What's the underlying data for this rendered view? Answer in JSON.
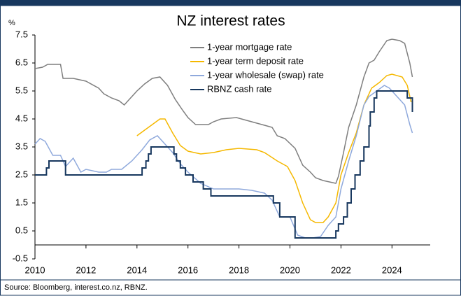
{
  "chart_data": {
    "type": "line",
    "title": "NZ interest rates",
    "y_label": "%",
    "source": "Source: Bloomberg, interest.co.nz, RBNZ.",
    "xlim": [
      2010,
      2025.5
    ],
    "xticks": [
      2010,
      2012,
      2014,
      2016,
      2018,
      2020,
      2022,
      2024
    ],
    "ylim": [
      -0.5,
      7.5
    ],
    "yticks": [
      -0.5,
      0.5,
      1.5,
      2.5,
      3.5,
      4.5,
      5.5,
      6.5,
      7.5
    ],
    "legend": "top",
    "series": [
      {
        "name": "1-year mortgage rate",
        "color": "#7f7f7f",
        "x": [
          2010,
          2010.3,
          2010.5,
          2011.0,
          2011.1,
          2011.5,
          2012.0,
          2012.5,
          2012.7,
          2013.0,
          2013.3,
          2013.5,
          2013.8,
          2014.0,
          2014.3,
          2014.6,
          2014.9,
          2015.2,
          2015.5,
          2015.8,
          2016.0,
          2016.3,
          2016.8,
          2017.0,
          2017.3,
          2017.9,
          2018.3,
          2018.9,
          2019.3,
          2019.5,
          2019.8,
          2020.2,
          2020.5,
          2020.8,
          2021.0,
          2021.3,
          2021.8,
          2021.9,
          2022.1,
          2022.3,
          2022.6,
          2022.9,
          2023.1,
          2023.3,
          2023.5,
          2023.8,
          2024.0,
          2024.3,
          2024.5,
          2024.7,
          2024.8
        ],
        "values": [
          6.3,
          6.35,
          6.45,
          6.45,
          5.95,
          5.95,
          5.85,
          5.6,
          5.4,
          5.25,
          5.15,
          5.0,
          5.3,
          5.5,
          5.75,
          5.95,
          6.0,
          5.7,
          5.2,
          4.8,
          4.55,
          4.3,
          4.3,
          4.4,
          4.5,
          4.55,
          4.45,
          4.3,
          4.2,
          3.9,
          3.8,
          3.45,
          2.85,
          2.6,
          2.4,
          2.3,
          2.2,
          2.45,
          3.3,
          4.2,
          5.0,
          6.0,
          6.5,
          6.6,
          6.9,
          7.3,
          7.35,
          7.3,
          7.2,
          6.5,
          6.0
        ]
      },
      {
        "name": "1-year term deposit rate",
        "color": "#f5b800",
        "x": [
          2014.0,
          2014.3,
          2014.6,
          2014.9,
          2015.1,
          2015.4,
          2015.7,
          2016.0,
          2016.5,
          2017.0,
          2017.5,
          2018.0,
          2018.7,
          2019.0,
          2019.5,
          2019.9,
          2020.2,
          2020.5,
          2020.8,
          2021.0,
          2021.3,
          2021.5,
          2021.8,
          2022.0,
          2022.3,
          2022.6,
          2022.9,
          2023.2,
          2023.5,
          2023.8,
          2024.0,
          2024.4,
          2024.6,
          2024.75
        ],
        "values": [
          3.9,
          4.1,
          4.3,
          4.5,
          4.5,
          4.0,
          3.55,
          3.35,
          3.25,
          3.3,
          3.4,
          3.45,
          3.4,
          3.3,
          3.0,
          2.8,
          2.3,
          1.5,
          0.9,
          0.8,
          0.8,
          1.0,
          1.5,
          2.5,
          3.3,
          4.0,
          5.0,
          5.6,
          5.8,
          6.05,
          6.1,
          6.0,
          5.7,
          5.1
        ]
      },
      {
        "name": "1-year wholesale (swap) rate",
        "color": "#8fa9dc",
        "x": [
          2010,
          2010.2,
          2010.4,
          2010.7,
          2011.0,
          2011.2,
          2011.5,
          2011.8,
          2012.0,
          2012.5,
          2012.8,
          2013.0,
          2013.4,
          2013.8,
          2014.2,
          2014.5,
          2014.8,
          2015.0,
          2015.4,
          2015.7,
          2016.0,
          2016.5,
          2017.0,
          2017.5,
          2018.0,
          2018.5,
          2019.0,
          2019.3,
          2019.6,
          2020.0,
          2020.3,
          2020.6,
          2020.9,
          2021.2,
          2021.5,
          2021.8,
          2022.0,
          2022.3,
          2022.6,
          2022.9,
          2023.1,
          2023.4,
          2023.7,
          2023.9,
          2024.2,
          2024.5,
          2024.7,
          2024.8
        ],
        "values": [
          3.6,
          3.8,
          3.7,
          3.2,
          3.2,
          2.8,
          3.1,
          2.6,
          2.7,
          2.6,
          2.6,
          2.7,
          2.7,
          3.0,
          3.4,
          3.75,
          3.9,
          3.7,
          3.3,
          2.9,
          2.6,
          2.2,
          2.0,
          2.0,
          2.0,
          1.95,
          1.85,
          1.6,
          1.0,
          1.0,
          0.35,
          0.25,
          0.25,
          0.3,
          0.7,
          1.0,
          2.0,
          3.0,
          3.9,
          5.0,
          5.3,
          5.5,
          5.7,
          5.6,
          5.3,
          5.0,
          4.3,
          4.0
        ]
      },
      {
        "name": "RBNZ cash rate",
        "color": "#17375e",
        "x": [
          2010,
          2010.45,
          2010.45,
          2010.55,
          2010.55,
          2011.2,
          2011.2,
          2014.2,
          2014.2,
          2014.35,
          2014.35,
          2014.45,
          2014.45,
          2014.55,
          2014.55,
          2015.45,
          2015.45,
          2015.55,
          2015.55,
          2015.7,
          2015.7,
          2015.9,
          2015.9,
          2016.2,
          2016.2,
          2016.6,
          2016.6,
          2016.9,
          2016.9,
          2019.35,
          2019.35,
          2019.6,
          2019.6,
          2020.2,
          2020.2,
          2021.8,
          2021.8,
          2021.9,
          2021.9,
          2022.1,
          2022.1,
          2022.25,
          2022.25,
          2022.4,
          2022.4,
          2022.55,
          2022.55,
          2022.75,
          2022.75,
          2022.9,
          2022.9,
          2023.1,
          2023.1,
          2023.15,
          2023.15,
          2023.3,
          2023.3,
          2023.4,
          2023.4,
          2024.6,
          2024.6,
          2024.8,
          2024.8
        ],
        "values": [
          2.5,
          2.5,
          2.75,
          2.75,
          3.0,
          3.0,
          2.5,
          2.5,
          2.75,
          2.75,
          3.0,
          3.0,
          3.25,
          3.25,
          3.5,
          3.5,
          3.25,
          3.25,
          3.0,
          3.0,
          2.75,
          2.75,
          2.5,
          2.5,
          2.25,
          2.25,
          2.0,
          2.0,
          1.75,
          1.75,
          1.5,
          1.5,
          1.0,
          1.0,
          0.25,
          0.25,
          0.5,
          0.5,
          0.75,
          0.75,
          1.0,
          1.0,
          1.5,
          1.5,
          2.0,
          2.0,
          2.5,
          2.5,
          3.0,
          3.0,
          3.5,
          3.5,
          4.25,
          4.25,
          4.75,
          4.75,
          5.25,
          5.25,
          5.5,
          5.5,
          5.25,
          5.25,
          4.75
        ]
      }
    ]
  }
}
